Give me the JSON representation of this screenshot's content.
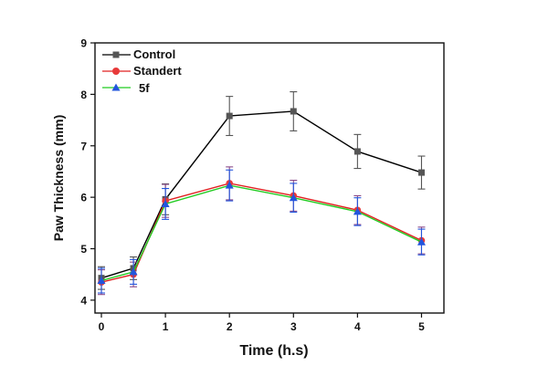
{
  "chart_data": {
    "type": "line",
    "title": "",
    "xlabel": "Time (h.s)",
    "ylabel": "Paw Thickness (mm)",
    "xlim": [
      -0.1,
      5.35
    ],
    "ylim": [
      3.75,
      9
    ],
    "xticks": [
      0,
      1,
      2,
      3,
      4,
      5
    ],
    "yticks": [
      4,
      5,
      6,
      7,
      8,
      9
    ],
    "grid": false,
    "legend_position": "top-left",
    "x": [
      0,
      0.5,
      1,
      2,
      3,
      4,
      5
    ],
    "series": [
      {
        "name": "Control",
        "color": "#000000",
        "marker_color": "#555555",
        "errorbar_color": "#555555",
        "marker": "square",
        "values": [
          4.43,
          4.62,
          5.96,
          7.58,
          7.67,
          6.89,
          6.48
        ],
        "errors": [
          0.22,
          0.22,
          0.3,
          0.38,
          0.38,
          0.33,
          0.32
        ]
      },
      {
        "name": "Standert",
        "color": "#e02020",
        "marker_color": "#e83a3a",
        "errorbar_color": "#8a4a8a",
        "marker": "circle",
        "values": [
          4.35,
          4.5,
          5.93,
          6.27,
          6.03,
          5.75,
          5.16
        ],
        "errors": [
          0.24,
          0.24,
          0.32,
          0.32,
          0.3,
          0.28,
          0.26
        ]
      },
      {
        "name": "5f",
        "color": "#22cc22",
        "marker_color": "#2255dd",
        "errorbar_color": "#2255dd",
        "marker": "triangle",
        "values": [
          4.38,
          4.55,
          5.87,
          6.23,
          5.99,
          5.72,
          5.13
        ],
        "errors": [
          0.24,
          0.24,
          0.3,
          0.3,
          0.28,
          0.27,
          0.25
        ]
      }
    ]
  }
}
